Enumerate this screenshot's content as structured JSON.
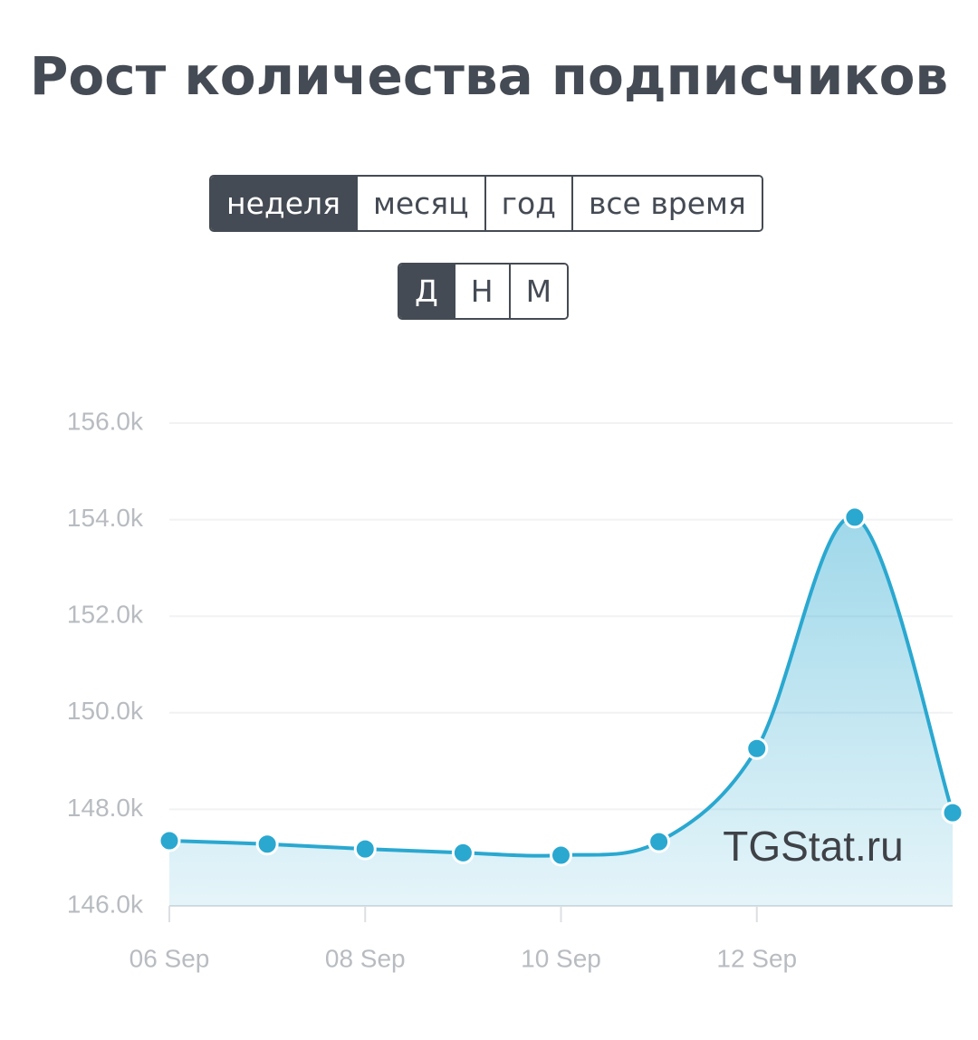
{
  "chart_data": {
    "type": "area",
    "title": "Рост количества подписчиков",
    "categories": [
      "06 Sep",
      null,
      "08 Sep",
      null,
      "10 Sep",
      null,
      "12 Sep",
      null,
      null
    ],
    "values": [
      147350,
      147280,
      147180,
      147100,
      147050,
      147330,
      149260,
      154050,
      147930
    ],
    "color": "#2aa8d0",
    "ylim": [
      146000,
      156000
    ],
    "yticks": [
      {
        "value": 146000,
        "label": "146.0k"
      },
      {
        "value": 148000,
        "label": "148.0k"
      },
      {
        "value": 150000,
        "label": "150.0k"
      },
      {
        "value": 152000,
        "label": "152.0k"
      },
      {
        "value": 154000,
        "label": "154.0k"
      },
      {
        "value": 156000,
        "label": "156.0k"
      }
    ],
    "grid": true,
    "watermark": "TGStat.ru"
  },
  "period_buttons": {
    "options": [
      "неделя",
      "месяц",
      "год",
      "все время"
    ],
    "active": 0
  },
  "granularity_buttons": {
    "options": [
      "Д",
      "Н",
      "М"
    ],
    "active": 0
  }
}
